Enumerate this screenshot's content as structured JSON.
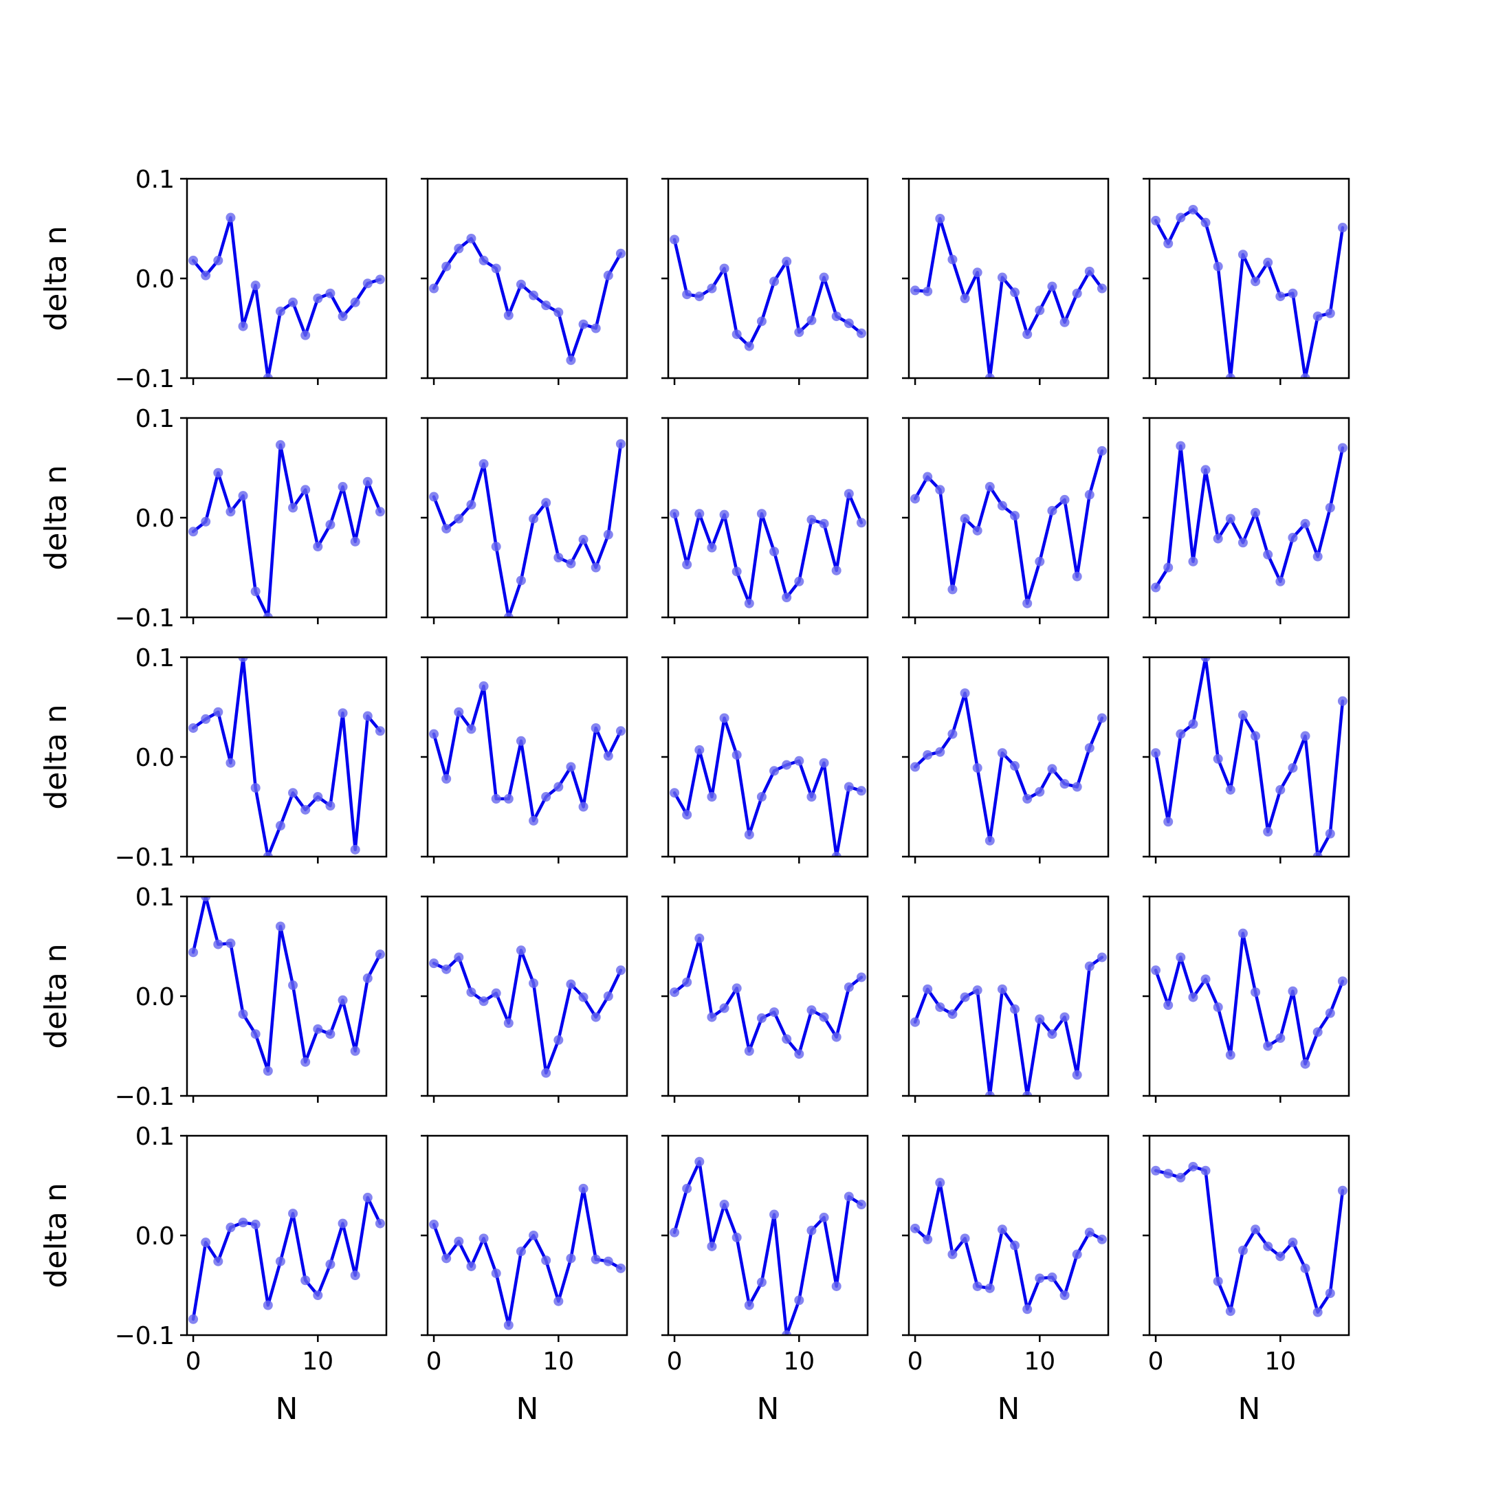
{
  "colors": {
    "line": "#0000ee",
    "marker": "#6666ee",
    "axes": "#000000",
    "background": "#ffffff"
  },
  "chart_data": {
    "type": "line",
    "layout": "grid",
    "rows": 5,
    "cols": 5,
    "x": [
      0,
      1,
      2,
      3,
      4,
      5,
      6,
      7,
      8,
      9,
      10,
      11,
      12,
      13,
      14,
      15
    ],
    "xlim": [
      -0.5,
      15.5
    ],
    "ylim": [
      -0.1,
      0.1
    ],
    "xticks": [
      0,
      10
    ],
    "xtick_labels": [
      "0",
      "10"
    ],
    "yticks": [
      0.1,
      0.0,
      -0.1
    ],
    "ytick_labels": [
      "0.1",
      "0.0",
      "−0.1"
    ],
    "xlabel": "N",
    "ylabel": "delta n",
    "grid": false,
    "panels": [
      {
        "values": [
          0.018,
          0.003,
          0.018,
          0.061,
          -0.048,
          -0.007,
          -0.1,
          -0.033,
          -0.024,
          -0.057,
          -0.02,
          -0.015,
          -0.038,
          -0.024,
          -0.005,
          -0.001
        ]
      },
      {
        "values": [
          -0.01,
          0.012,
          0.03,
          0.04,
          0.018,
          0.01,
          -0.037,
          -0.006,
          -0.017,
          -0.027,
          -0.034,
          -0.082,
          -0.046,
          -0.05,
          0.003,
          0.025
        ]
      },
      {
        "values": [
          0.039,
          -0.016,
          -0.018,
          -0.01,
          0.01,
          -0.056,
          -0.068,
          -0.043,
          -0.003,
          0.017,
          -0.054,
          -0.042,
          0.001,
          -0.038,
          -0.045,
          -0.055
        ]
      },
      {
        "values": [
          -0.012,
          -0.013,
          0.06,
          0.019,
          -0.02,
          0.006,
          -0.1,
          0.001,
          -0.014,
          -0.056,
          -0.032,
          -0.008,
          -0.044,
          -0.015,
          0.007,
          -0.01
        ]
      },
      {
        "values": [
          0.058,
          0.035,
          0.061,
          0.069,
          0.056,
          0.012,
          -0.1,
          0.024,
          -0.003,
          0.016,
          -0.018,
          -0.015,
          -0.1,
          -0.038,
          -0.035,
          0.051
        ]
      },
      {
        "values": [
          -0.014,
          -0.004,
          0.045,
          0.006,
          0.022,
          -0.074,
          -0.1,
          0.073,
          0.01,
          0.028,
          -0.029,
          -0.007,
          0.031,
          -0.024,
          0.036,
          0.006
        ]
      },
      {
        "values": [
          0.021,
          -0.011,
          -0.001,
          0.013,
          0.054,
          -0.029,
          -0.1,
          -0.063,
          -0.001,
          0.015,
          -0.04,
          -0.046,
          -0.022,
          -0.05,
          -0.017,
          0.074
        ]
      },
      {
        "values": [
          0.004,
          -0.047,
          0.004,
          -0.03,
          0.003,
          -0.054,
          -0.086,
          0.004,
          -0.034,
          -0.08,
          -0.064,
          -0.002,
          -0.006,
          -0.053,
          0.024,
          -0.005
        ]
      },
      {
        "values": [
          0.019,
          0.041,
          0.028,
          -0.072,
          -0.001,
          -0.013,
          0.031,
          0.012,
          0.002,
          -0.086,
          -0.044,
          0.007,
          0.018,
          -0.059,
          0.023,
          0.067
        ]
      },
      {
        "values": [
          -0.07,
          -0.05,
          0.072,
          -0.044,
          0.048,
          -0.021,
          -0.001,
          -0.025,
          0.005,
          -0.037,
          -0.064,
          -0.02,
          -0.006,
          -0.039,
          0.01,
          0.07
        ]
      },
      {
        "values": [
          0.029,
          0.038,
          0.045,
          -0.006,
          0.1,
          -0.031,
          -0.1,
          -0.069,
          -0.036,
          -0.053,
          -0.04,
          -0.049,
          0.044,
          -0.093,
          0.041,
          0.026
        ]
      },
      {
        "values": [
          0.023,
          -0.022,
          0.045,
          0.028,
          0.071,
          -0.042,
          -0.042,
          0.016,
          -0.064,
          -0.04,
          -0.03,
          -0.01,
          -0.05,
          0.029,
          0.001,
          0.026
        ]
      },
      {
        "values": [
          -0.036,
          -0.058,
          0.007,
          -0.04,
          0.039,
          0.002,
          -0.078,
          -0.04,
          -0.014,
          -0.008,
          -0.004,
          -0.04,
          -0.006,
          -0.1,
          -0.03,
          -0.034
        ]
      },
      {
        "values": [
          -0.01,
          0.002,
          0.005,
          0.023,
          0.064,
          -0.011,
          -0.084,
          0.004,
          -0.009,
          -0.042,
          -0.035,
          -0.012,
          -0.027,
          -0.03,
          0.009,
          0.039
        ]
      },
      {
        "values": [
          0.004,
          -0.065,
          0.023,
          0.033,
          0.1,
          -0.002,
          -0.033,
          0.042,
          0.021,
          -0.075,
          -0.033,
          -0.011,
          0.021,
          -0.1,
          -0.077,
          0.056
        ]
      },
      {
        "values": [
          0.044,
          0.1,
          0.052,
          0.053,
          -0.018,
          -0.038,
          -0.075,
          0.07,
          0.011,
          -0.066,
          -0.033,
          -0.038,
          -0.004,
          -0.055,
          0.018,
          0.042
        ]
      },
      {
        "values": [
          0.033,
          0.027,
          0.039,
          0.004,
          -0.005,
          0.003,
          -0.027,
          0.046,
          0.013,
          -0.077,
          -0.044,
          0.012,
          -0.001,
          -0.021,
          0.0,
          0.026
        ]
      },
      {
        "values": [
          0.004,
          0.014,
          0.058,
          -0.021,
          -0.012,
          0.008,
          -0.055,
          -0.022,
          -0.016,
          -0.043,
          -0.058,
          -0.014,
          -0.021,
          -0.041,
          0.009,
          0.019
        ]
      },
      {
        "values": [
          -0.026,
          0.007,
          -0.011,
          -0.018,
          -0.001,
          0.006,
          -0.1,
          0.007,
          -0.013,
          -0.1,
          -0.023,
          -0.038,
          -0.021,
          -0.079,
          0.03,
          0.039
        ]
      },
      {
        "values": [
          0.026,
          -0.009,
          0.039,
          -0.001,
          0.017,
          -0.011,
          -0.059,
          0.063,
          0.004,
          -0.05,
          -0.042,
          0.005,
          -0.068,
          -0.036,
          -0.017,
          0.015
        ]
      },
      {
        "values": [
          -0.084,
          -0.007,
          -0.026,
          0.008,
          0.013,
          0.011,
          -0.07,
          -0.026,
          0.022,
          -0.045,
          -0.06,
          -0.029,
          0.012,
          -0.04,
          0.038,
          0.012
        ]
      },
      {
        "values": [
          0.011,
          -0.023,
          -0.006,
          -0.031,
          -0.003,
          -0.038,
          -0.09,
          -0.016,
          0.0,
          -0.025,
          -0.066,
          -0.023,
          0.047,
          -0.024,
          -0.026,
          -0.033
        ]
      },
      {
        "values": [
          0.003,
          0.047,
          0.074,
          -0.011,
          0.031,
          -0.002,
          -0.07,
          -0.047,
          0.021,
          -0.1,
          -0.065,
          0.005,
          0.018,
          -0.051,
          0.039,
          0.031
        ]
      },
      {
        "values": [
          0.007,
          -0.004,
          0.053,
          -0.019,
          -0.003,
          -0.051,
          -0.053,
          0.006,
          -0.01,
          -0.074,
          -0.043,
          -0.042,
          -0.06,
          -0.019,
          0.003,
          -0.004
        ]
      },
      {
        "values": [
          0.065,
          0.062,
          0.058,
          0.069,
          0.065,
          -0.046,
          -0.076,
          -0.015,
          0.006,
          -0.011,
          -0.021,
          -0.007,
          -0.033,
          -0.077,
          -0.058,
          0.045
        ]
      }
    ]
  }
}
